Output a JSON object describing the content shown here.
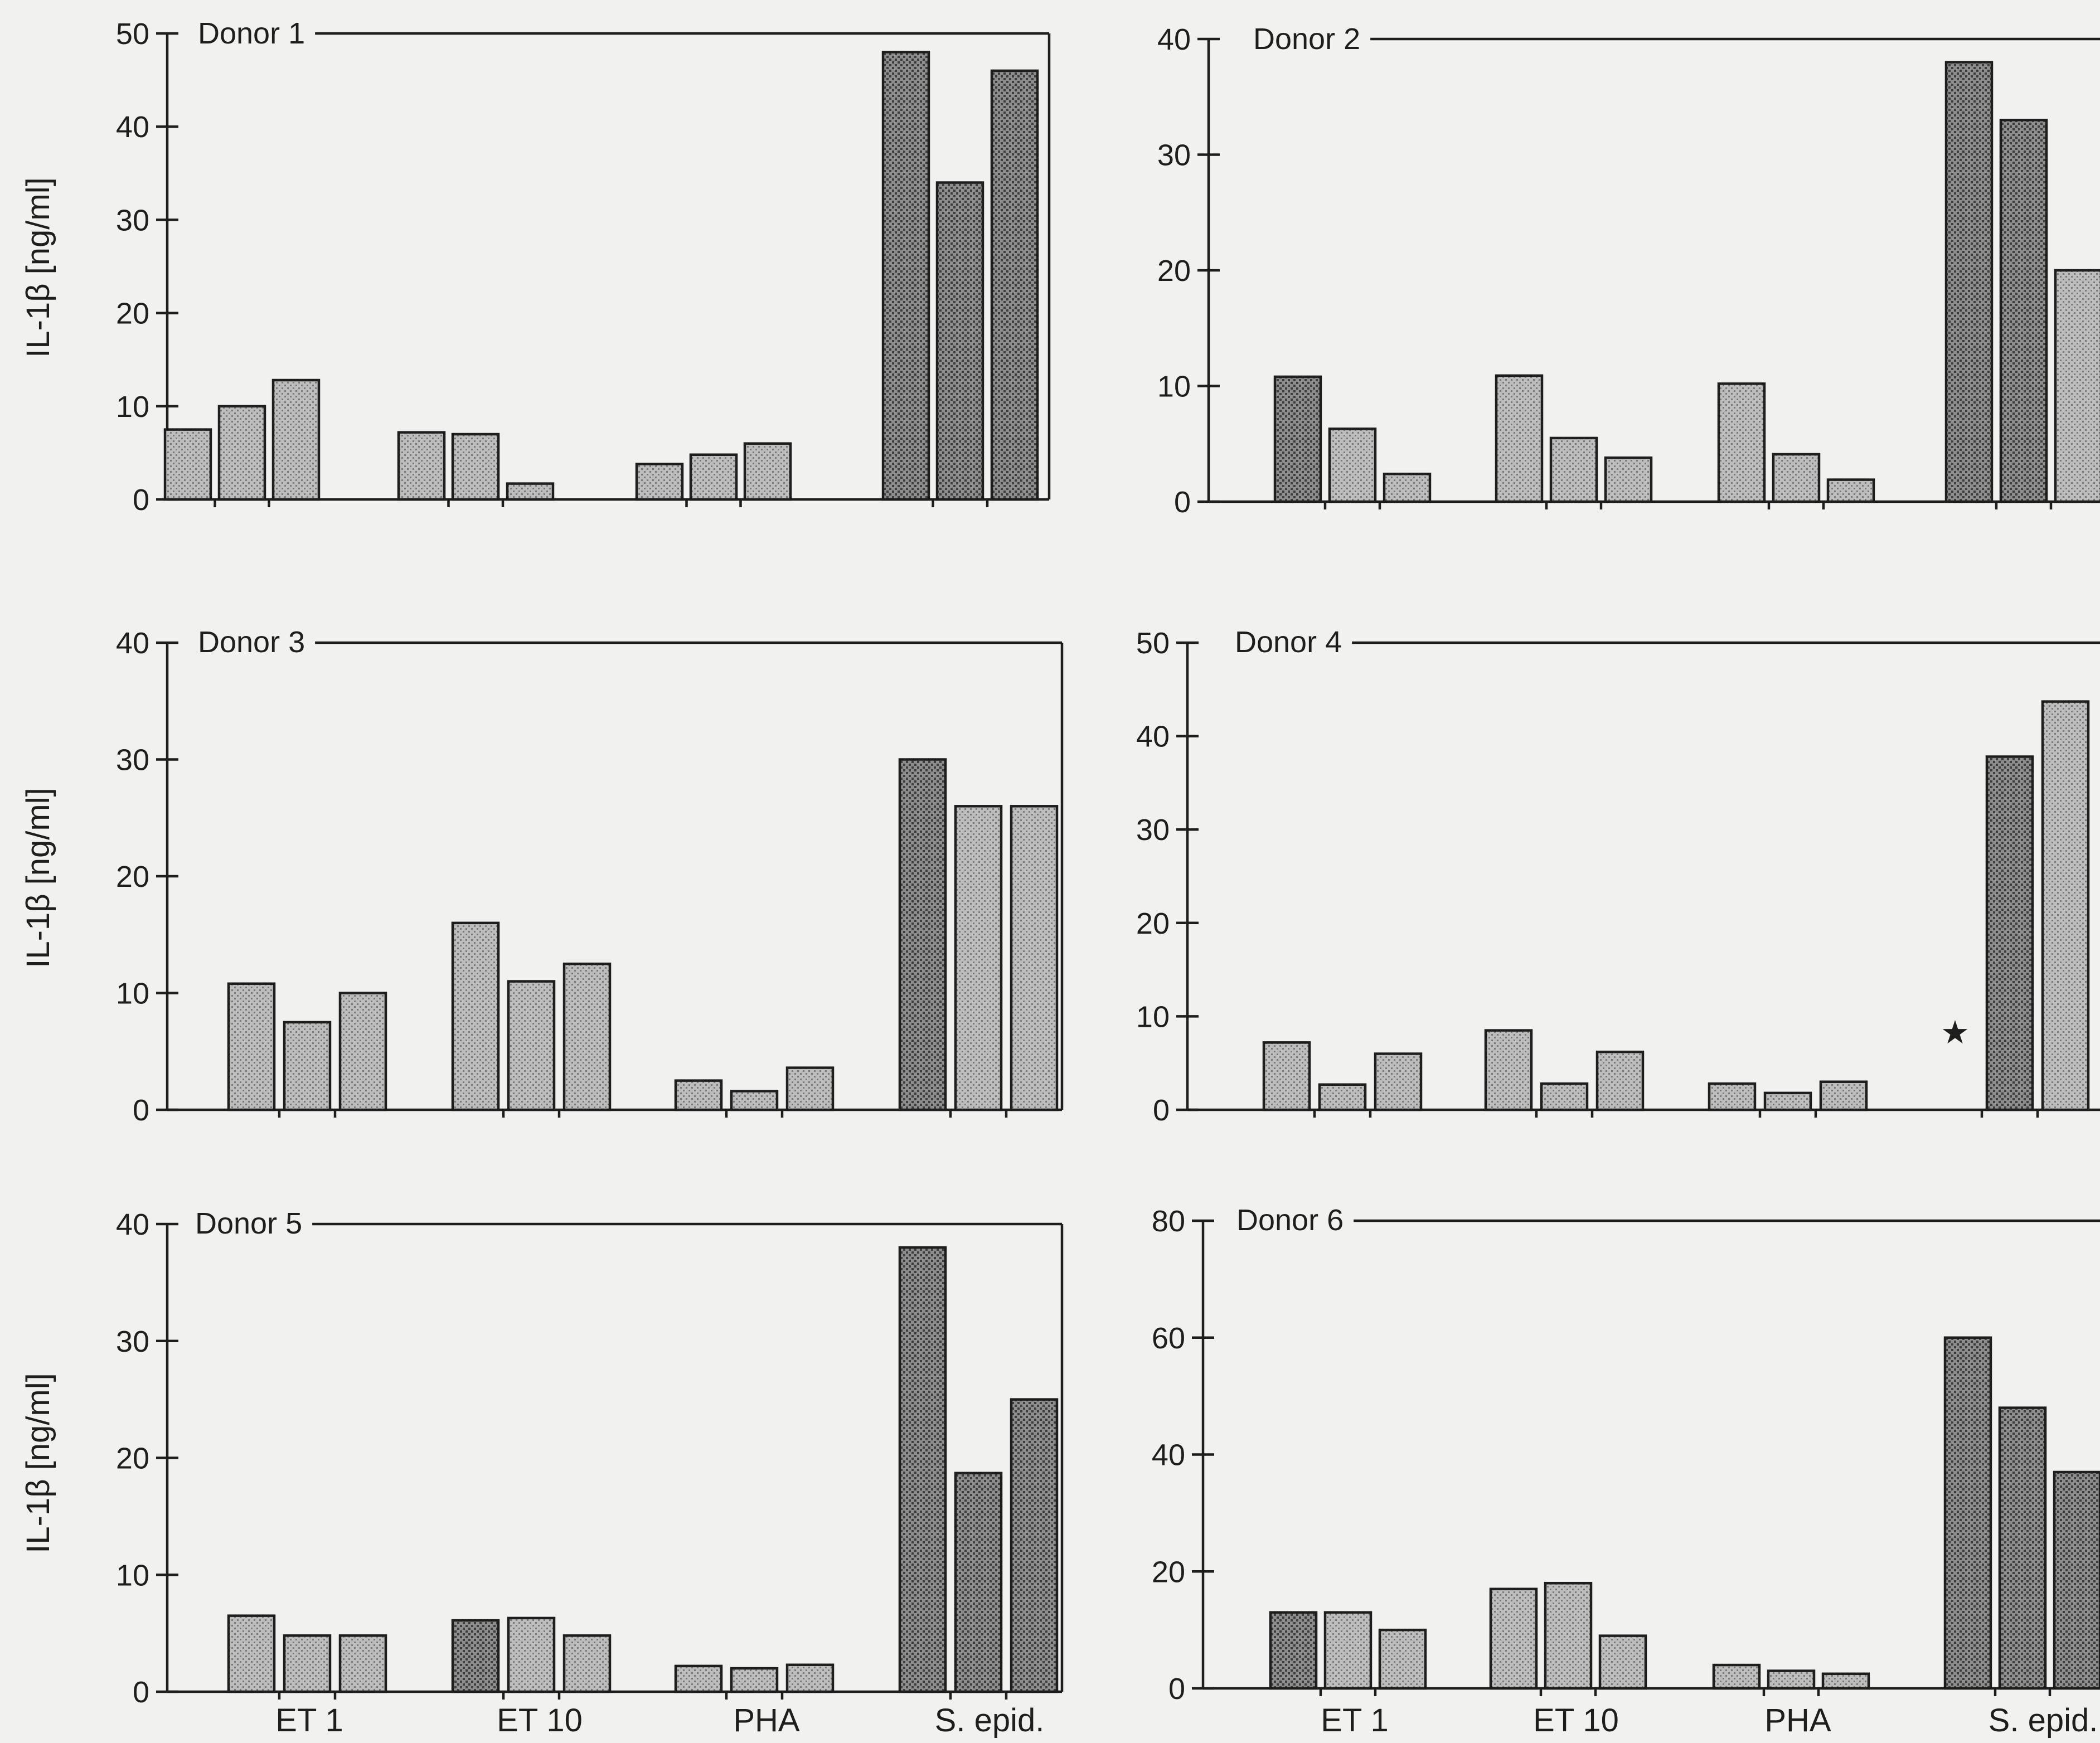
{
  "ylabel": "IL-1β [ng/ml]",
  "categories": [
    "ET 1",
    "ET 10",
    "PHA",
    "S. epid."
  ],
  "marker_glyph": "★",
  "chart_data": [
    {
      "type": "bar",
      "title": "Donor 1",
      "ylabel": "IL-1β [ng/ml]",
      "ylim": [
        0,
        50
      ],
      "yticks": [
        "0",
        "10",
        "20",
        "30",
        "40",
        "50"
      ],
      "categories": [
        "ET 1",
        "ET 10",
        "PHA",
        "S. epid."
      ],
      "values": [
        [
          7.5,
          10,
          12.8
        ],
        [
          7.2,
          7,
          1.7
        ],
        [
          3.8,
          4.8,
          6
        ],
        [
          48,
          34,
          46
        ]
      ]
    },
    {
      "type": "bar",
      "title": "Donor 2",
      "ylabel": "",
      "ylim": [
        0,
        40
      ],
      "yticks": [
        "0",
        "10",
        "20",
        "30",
        "40"
      ],
      "categories": [
        "ET 1",
        "ET 10",
        "PHA",
        "S. epid."
      ],
      "values": [
        [
          10.8,
          6.3,
          2.4
        ],
        [
          10.9,
          5.5,
          3.8
        ],
        [
          10.2,
          4.1,
          1.9
        ],
        [
          38,
          33,
          20
        ]
      ]
    },
    {
      "type": "bar",
      "title": "Donor 3",
      "ylabel": "IL-1β [ng/ml]",
      "ylim": [
        0,
        40
      ],
      "yticks": [
        "0",
        "10",
        "20",
        "30",
        "40"
      ],
      "categories": [
        "ET 1",
        "ET 10",
        "PHA",
        "S. epid."
      ],
      "values": [
        [
          10.8,
          7.5,
          10
        ],
        [
          16,
          11,
          12.5
        ],
        [
          2.5,
          1.6,
          3.6
        ],
        [
          30,
          26,
          26
        ]
      ]
    },
    {
      "type": "bar",
      "title": "Donor 4",
      "ylabel": "",
      "ylim": [
        0,
        50
      ],
      "yticks": [
        "0",
        "10",
        "20",
        "30",
        "40",
        "50"
      ],
      "categories": [
        "ET 1",
        "ET 10",
        "PHA",
        "S. epid."
      ],
      "values": [
        [
          7.2,
          2.7,
          6
        ],
        [
          8.5,
          2.8,
          6.2
        ],
        [
          2.8,
          1.8,
          3
        ],
        [
          null,
          37.8,
          43.7
        ]
      ],
      "annotation": "★"
    },
    {
      "type": "bar",
      "title": "Donor 5",
      "ylabel": "IL-1β [ng/ml]",
      "ylim": [
        0,
        40
      ],
      "yticks": [
        "0",
        "10",
        "20",
        "30",
        "40"
      ],
      "categories": [
        "ET 1",
        "ET 10",
        "PHA",
        "S. epid."
      ],
      "values": [
        [
          6.5,
          4.8,
          4.8
        ],
        [
          6.1,
          6.3,
          4.8
        ],
        [
          2.2,
          2,
          2.3
        ],
        [
          38,
          18.7,
          25
        ]
      ]
    },
    {
      "type": "bar",
      "title": "Donor 6",
      "ylabel": "",
      "ylim": [
        0,
        80
      ],
      "yticks": [
        "0",
        "20",
        "40",
        "60",
        "80"
      ],
      "categories": [
        "ET 1",
        "ET 10",
        "PHA",
        "S. epid."
      ],
      "values": [
        [
          13,
          13,
          10
        ],
        [
          17,
          18,
          9
        ],
        [
          4,
          3,
          2.5
        ],
        [
          60,
          48,
          37
        ]
      ]
    }
  ]
}
